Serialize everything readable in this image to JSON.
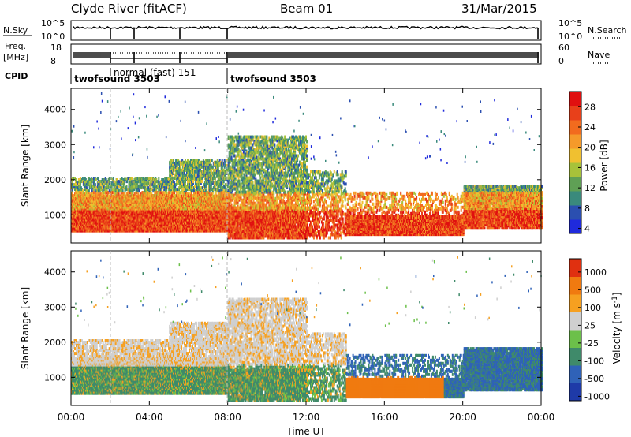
{
  "header": {
    "station": "Clyde River (fitACF)",
    "beam": "Beam 01",
    "date": "31/Mar/2015"
  },
  "top_panels": {
    "nsky": {
      "label": "N.Sky",
      "ticks": [
        "10^5",
        "10^0"
      ],
      "right_ticks": [
        "10^5",
        "10^0"
      ],
      "right_label": "N.Search"
    },
    "freq": {
      "label_line1": "Freq.",
      "label_line2": "[MHz]",
      "ticks": [
        "18",
        "8"
      ],
      "right_ticks": [
        "60",
        "0"
      ],
      "right_label": "Nave"
    },
    "cpid": {
      "label": "CPID",
      "segments": [
        {
          "text": "twofsound 3503"
        },
        {
          "text": "normal (fast) 151"
        },
        {
          "text": "twofsound 3503"
        }
      ]
    }
  },
  "chart_data": [
    {
      "type": "heatmap",
      "name": "power",
      "ylabel": "Slant Range [km]",
      "yticks": [
        1000,
        2000,
        3000,
        4000
      ],
      "ylim": [
        200,
        4600
      ],
      "colorbar_label": "Power [dB]",
      "colorbar_ticks": [
        "28",
        "24",
        "20",
        "16",
        "12",
        "8",
        "4"
      ],
      "colors": [
        "#1f2adc",
        "#2b4fb0",
        "#3a8a7c",
        "#5fa055",
        "#a7c23a",
        "#f0c030",
        "#f59a2a",
        "#f26b1e",
        "#e8401a",
        "#e01010"
      ]
    },
    {
      "type": "heatmap",
      "name": "velocity",
      "ylabel": "Slant Range [km]",
      "yticks": [
        1000,
        2000,
        3000,
        4000
      ],
      "ylim": [
        200,
        4600
      ],
      "colorbar_label": "Velocity [m s^-1]",
      "colorbar_ticks": [
        "1000",
        "500",
        "100",
        "25",
        "-25",
        "-100",
        "-500",
        "-1000"
      ],
      "colors": [
        "#1e3aa8",
        "#2f62b8",
        "#3f8a6a",
        "#6cc04a",
        "#cfcfcf",
        "#f6a020",
        "#f07a10",
        "#e03010"
      ]
    }
  ],
  "xaxis": {
    "label": "Time UT",
    "ticks": [
      "00:00",
      "04:00",
      "08:00",
      "12:00",
      "16:00",
      "20:00",
      "00:00"
    ]
  }
}
